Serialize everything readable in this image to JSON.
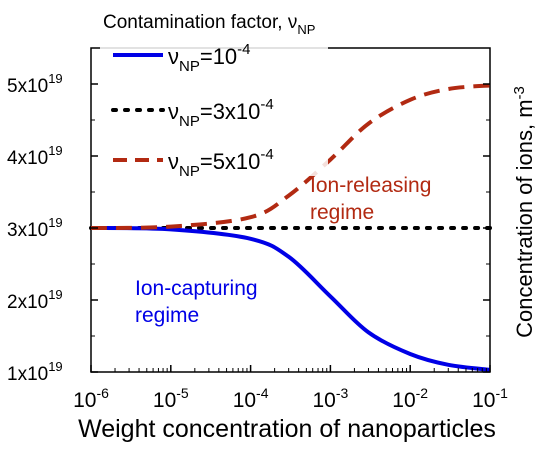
{
  "chart_data": {
    "type": "line",
    "legend_title": "Contamination factor, ν",
    "legend_title_sub": "NP",
    "legend_position": "top-left",
    "xlabel": "Weight concentration of nanoparticles",
    "ylabel": "Concentration of ions, m",
    "ylabel_sup": "-3",
    "x_scale": "log",
    "xlim": [
      1e-06,
      0.1
    ],
    "ylim": [
      1e+19,
      5.5e+19
    ],
    "grid": false,
    "x_ticks": [
      {
        "base": "10",
        "exp": "-6",
        "value": 1e-06
      },
      {
        "base": "10",
        "exp": "-5",
        "value": 1e-05
      },
      {
        "base": "10",
        "exp": "-4",
        "value": 0.0001
      },
      {
        "base": "10",
        "exp": "-3",
        "value": 0.001
      },
      {
        "base": "10",
        "exp": "-2",
        "value": 0.01
      },
      {
        "base": "10",
        "exp": "-1",
        "value": 0.1
      }
    ],
    "y_ticks": [
      {
        "mant": "1x10",
        "exp": "19",
        "value": 1e+19
      },
      {
        "mant": "2x10",
        "exp": "19",
        "value": 2e+19
      },
      {
        "mant": "3x10",
        "exp": "19",
        "value": 3e+19
      },
      {
        "mant": "4x10",
        "exp": "19",
        "value": 4e+19
      },
      {
        "mant": "5x10",
        "exp": "19",
        "value": 5e+19
      }
    ],
    "series": [
      {
        "name": "ν_NP=10^-4",
        "label_main": "ν",
        "label_sub": "NP",
        "label_rest": "=10",
        "label_sup": "-4",
        "color": "#0000e6",
        "dash": "solid",
        "x": [
          1e-06,
          1e-05,
          0.0001,
          0.0003,
          0.001,
          0.003,
          0.01,
          0.03,
          0.1
        ],
        "y": [
          3e+19,
          2.98e+19,
          2.85e+19,
          2.6e+19,
          2.05e+19,
          1.55e+19,
          1.25e+19,
          1.1e+19,
          1.03e+19
        ]
      },
      {
        "name": "ν_NP=3x10^-4",
        "label_main": "ν",
        "label_sub": "NP",
        "label_rest": "=3x10",
        "label_sup": "-4",
        "color": "#000000",
        "dash": "dot",
        "x": [
          1e-06,
          1e-05,
          0.0001,
          0.001,
          0.01,
          0.1
        ],
        "y": [
          3e+19,
          3e+19,
          3e+19,
          3e+19,
          3e+19,
          3e+19
        ]
      },
      {
        "name": "ν_NP=5x10^-4",
        "label_main": "ν",
        "label_sub": "NP",
        "label_rest": "=5x10",
        "label_sup": "-4",
        "color": "#b22a12",
        "dash": "dash",
        "x": [
          1e-06,
          1e-05,
          0.0001,
          0.0003,
          0.001,
          0.003,
          0.01,
          0.03,
          0.1
        ],
        "y": [
          3e+19,
          3.02e+19,
          3.15e+19,
          3.45e+19,
          3.95e+19,
          4.45e+19,
          4.78e+19,
          4.93e+19,
          4.98e+19
        ]
      }
    ],
    "annotations": [
      {
        "lines": [
          "Ion-capturing",
          "regime"
        ],
        "color": "#0000e6"
      },
      {
        "lines": [
          "Ion-releasing",
          "regime"
        ],
        "color": "#b22a12"
      }
    ]
  }
}
